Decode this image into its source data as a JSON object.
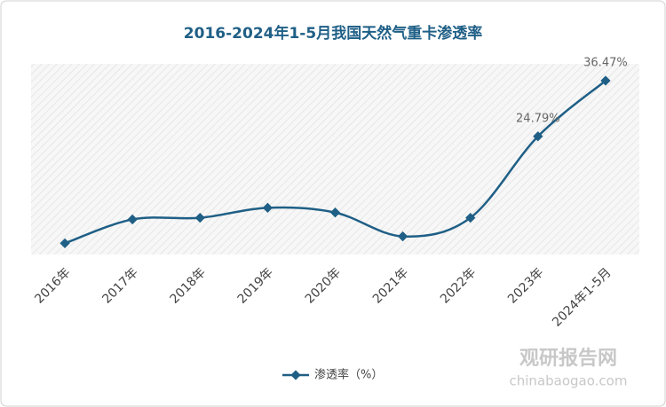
{
  "chart_data": {
    "type": "line",
    "title": "2016-2024年1-5月我国天然气重卡渗透率",
    "categories": [
      "2016年",
      "2017年",
      "2018年",
      "2019年",
      "2020年",
      "2021年",
      "2022年",
      "2023年",
      "2024年1-5月"
    ],
    "series": [
      {
        "name": "渗透率（%）",
        "color": "#1f5f86",
        "values": [
          2.35,
          7.36,
          7.7,
          9.8,
          8.8,
          3.8,
          7.7,
          24.79,
          36.47
        ],
        "value_labels": [
          null,
          null,
          null,
          null,
          null,
          null,
          null,
          "24.79%",
          "36.47%"
        ]
      }
    ],
    "ylim": [
      0,
      40
    ],
    "smooth": true,
    "legend": "bottom",
    "watermark": [
      "观研报告网",
      "chinabaogao.com"
    ]
  }
}
